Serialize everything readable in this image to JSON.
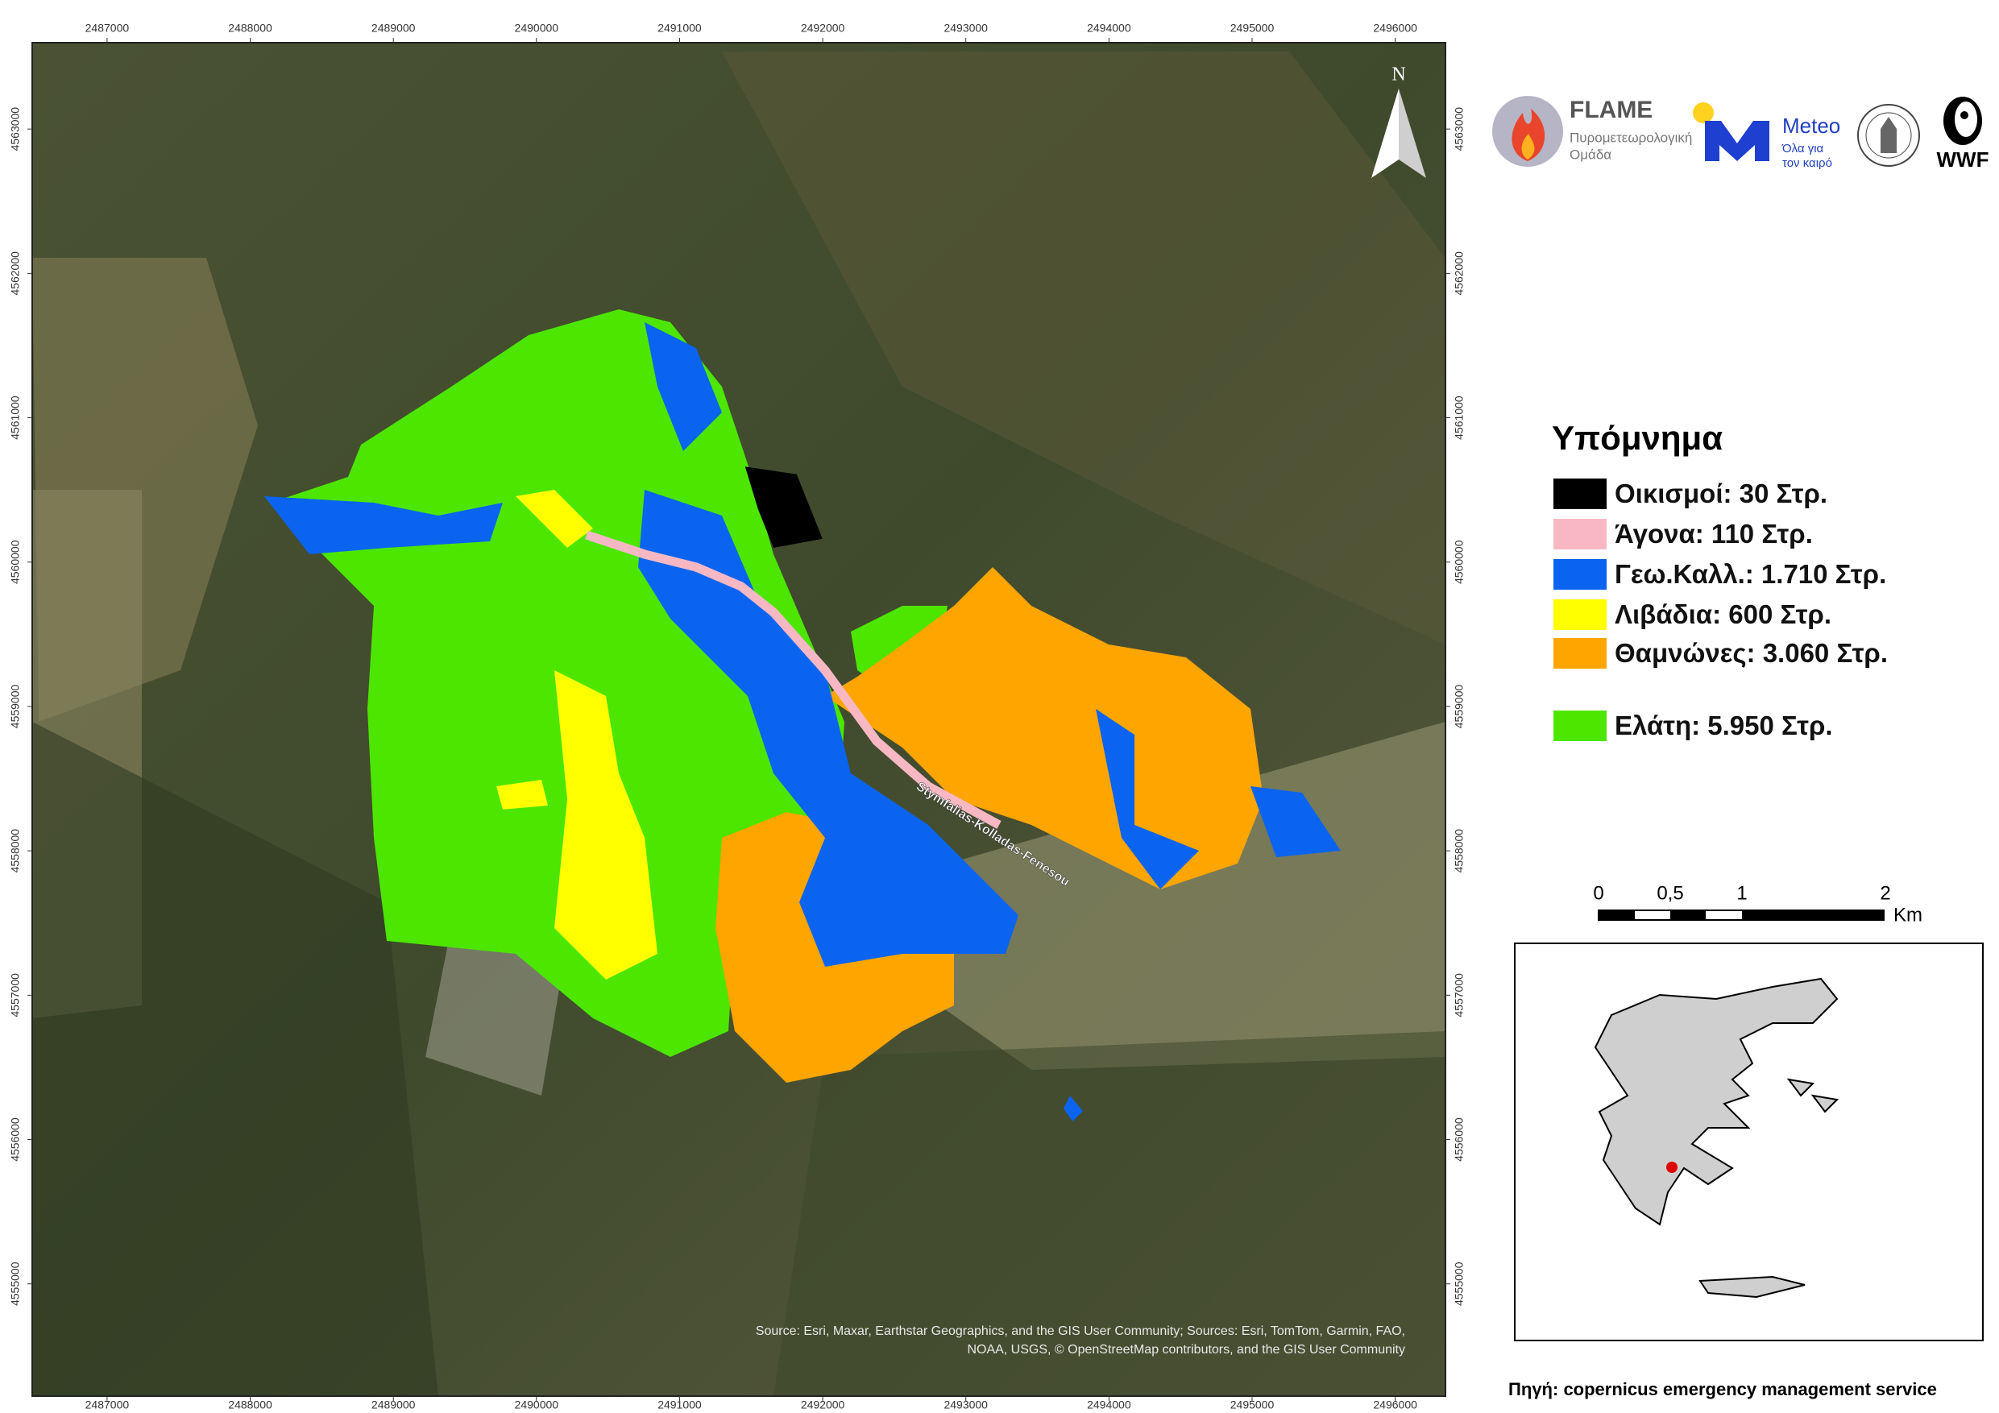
{
  "map": {
    "xlim": [
      2486477,
      2496351
    ],
    "ylim": [
      4554223,
      4563598
    ],
    "x_ticks": [
      2487000,
      2488000,
      2489000,
      2490000,
      2491000,
      2492000,
      2493000,
      2494000,
      2495000,
      2496000
    ],
    "y_ticks": [
      4563000,
      4562000,
      4561000,
      4560000,
      4559000,
      4558000,
      4557000,
      4556000,
      4555000
    ],
    "north": "N",
    "road_label": "Stymfalias-Kolladas-Fenesou",
    "attribution": [
      "Source: Esri, Maxar, Earthstar Geographics, and the GIS User Community; Sources: Esri, TomTom, Garmin, FAO,",
      "NOAA, USGS, © OpenStreetMap contributors, and the GIS User Community"
    ]
  },
  "legend": {
    "title": "Υπόμνημα",
    "items": [
      {
        "label": "Οικισμοί: 30 Στρ.",
        "color": "#000000"
      },
      {
        "label": "Άγονα: 110 Στρ.",
        "color": "#f7b8c4"
      },
      {
        "label": "Γεω.Καλλ.: 1.710 Στρ.",
        "color": "#0a64f0"
      },
      {
        "label": "Λιβάδια: 600 Στρ.",
        "color": "#ffff00"
      },
      {
        "label": "Θαμνώνες: 3.060 Στρ.",
        "color": "#ffa500"
      },
      {
        "label": "Ελάτη: 5.950 Στρ.",
        "color": "#4ce600"
      }
    ]
  },
  "scale_bar": {
    "labels": [
      "0",
      "0,5",
      "1",
      "2"
    ],
    "unit": "Km"
  },
  "logos": {
    "flame": {
      "name": "FLAME",
      "subtitle": [
        "Πυρομετεωρολογική",
        "Ομάδα"
      ]
    },
    "meteo": {
      "name": "Meteo",
      "subtitle": [
        "Όλα για",
        "τον καιρό"
      ]
    },
    "wwf": "WWF"
  },
  "source": "Πηγή: copernicus emergency management service"
}
